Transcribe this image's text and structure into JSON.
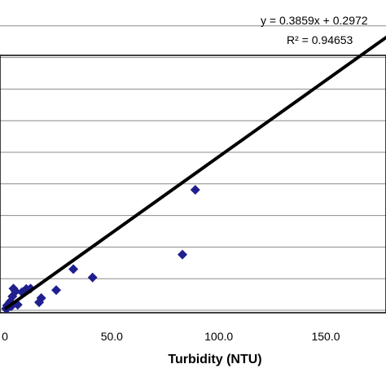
{
  "chart_data": {
    "type": "scatter",
    "title": "",
    "xlabel": "Turbidity (NTU)",
    "ylabel": "",
    "xlim": [
      0,
      180
    ],
    "ylim": [
      0,
      80
    ],
    "x_ticks": [
      "0",
      "50.0",
      "100.0",
      "150.0"
    ],
    "x_tick_values": [
      0,
      50,
      100,
      150
    ],
    "y_gridlines": [
      0,
      8,
      16,
      24,
      32,
      40,
      48,
      56,
      64,
      72
    ],
    "grid": true,
    "series": [
      {
        "marker": "diamond",
        "color": "#1f1f8f",
        "x": [
          0.5,
          1,
          1.5,
          2,
          2.5,
          3,
          3.5,
          4,
          5,
          6,
          8,
          10,
          12,
          16,
          17,
          24,
          32,
          41,
          83,
          89
        ],
        "y": [
          0.4,
          1.2,
          0.7,
          1.6,
          2.2,
          1.0,
          3.5,
          5.5,
          4.8,
          1.4,
          4.6,
          5.4,
          5.5,
          2.0,
          3.1,
          5.1,
          10.4,
          8.3,
          14.1,
          30.5
        ]
      }
    ],
    "trendline": {
      "equation": "y = 0.3859x + 0.2972",
      "r_squared": "R² = 0.94653",
      "slope": 0.3859,
      "intercept": 0.2972
    }
  }
}
